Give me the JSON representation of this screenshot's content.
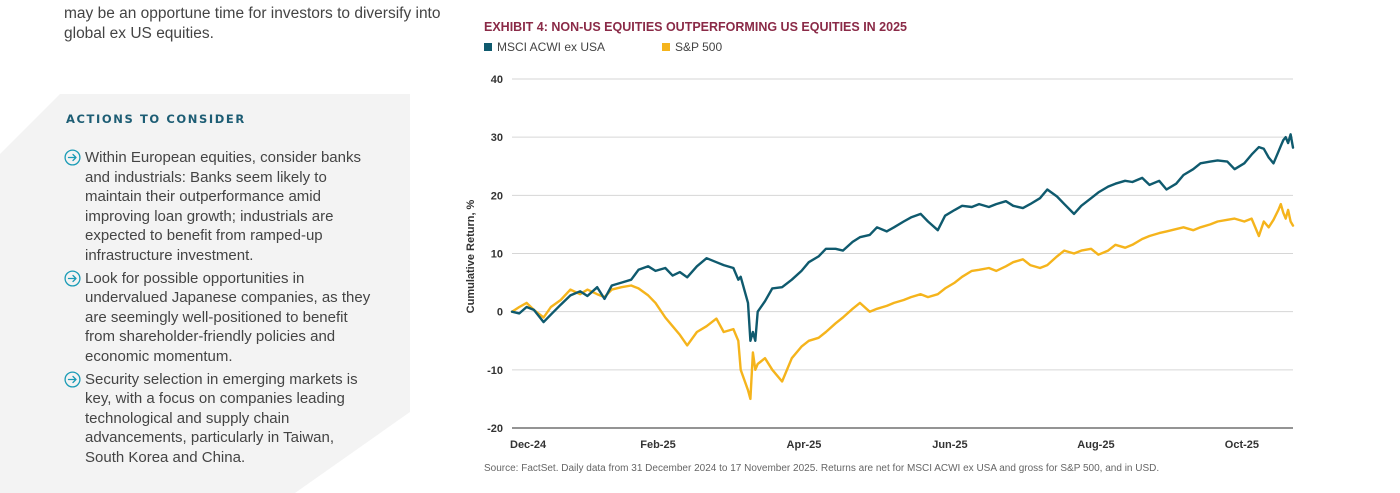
{
  "intro_text": "may be an opportune time for investors to diversify into global ex US equities.",
  "actions": {
    "heading": "ACTIONS TO CONSIDER",
    "items": [
      {
        "text": "Within European equities, consider banks and industrials: Banks seem likely to maintain their outperformance amid improving loan growth; industrials are expected to benefit from ramped-up infrastructure investment."
      },
      {
        "text": "Look for possible opportunities in undervalued Japanese companies, as they are seemingly well-positioned to benefit from shareholder-friendly policies and economic momentum."
      },
      {
        "text": "Security selection in emerging markets is key, with a focus on companies leading technological and supply chain advancements, particularly in Taiwan, South Korea and China."
      }
    ],
    "icon": "circle-arrow-right-icon"
  },
  "colors": {
    "msci": "#0f5a6e",
    "sp500": "#f5b41c",
    "title": "#8a2a47",
    "heading": "#1d5d74"
  },
  "chart_data": {
    "type": "line",
    "title": "EXHIBIT 4: NON-US EQUITIES OUTPERFORMING US EQUITIES IN 2025",
    "ylabel": "Cumulative Return, %",
    "xlabel": "",
    "ylim": [
      -20,
      40
    ],
    "yticks": [
      40,
      30,
      20,
      10,
      0,
      -10,
      -20
    ],
    "xticks": [
      {
        "label": "Dec-24",
        "date": "2024-12-31"
      },
      {
        "label": "Feb-25",
        "date": "2025-03-01"
      },
      {
        "label": "Apr-25",
        "date": "2025-04-30"
      },
      {
        "label": "Jun-25",
        "date": "2025-06-29"
      },
      {
        "label": "Aug-25",
        "date": "2025-08-28"
      },
      {
        "label": "Oct-25",
        "date": "2025-10-27"
      }
    ],
    "xrange": [
      "2024-12-31",
      "2025-11-17"
    ],
    "grid": true,
    "legend_position": "top-left",
    "series": [
      {
        "name": "MSCI ACWI ex USA",
        "color": "#0f5a6e",
        "points": [
          [
            "2024-12-31",
            0
          ],
          [
            "2025-01-03",
            -0.3
          ],
          [
            "2025-01-06",
            0.8
          ],
          [
            "2025-01-09",
            0.3
          ],
          [
            "2025-01-13",
            -1.8
          ],
          [
            "2025-01-16",
            -0.5
          ],
          [
            "2025-01-20",
            1.2
          ],
          [
            "2025-01-24",
            2.8
          ],
          [
            "2025-01-28",
            3.5
          ],
          [
            "2025-01-31",
            2.7
          ],
          [
            "2025-02-04",
            4.2
          ],
          [
            "2025-02-07",
            2.2
          ],
          [
            "2025-02-10",
            4.5
          ],
          [
            "2025-02-14",
            5.0
          ],
          [
            "2025-02-18",
            5.5
          ],
          [
            "2025-02-21",
            7.2
          ],
          [
            "2025-02-25",
            7.8
          ],
          [
            "2025-02-28",
            7.0
          ],
          [
            "2025-03-04",
            7.5
          ],
          [
            "2025-03-07",
            6.2
          ],
          [
            "2025-03-10",
            6.8
          ],
          [
            "2025-03-13",
            5.9
          ],
          [
            "2025-03-17",
            7.8
          ],
          [
            "2025-03-21",
            9.2
          ],
          [
            "2025-03-25",
            8.5
          ],
          [
            "2025-03-28",
            8.0
          ],
          [
            "2025-04-01",
            7.5
          ],
          [
            "2025-04-03",
            5.5
          ],
          [
            "2025-04-04",
            6.0
          ],
          [
            "2025-04-07",
            1.5
          ],
          [
            "2025-04-08",
            -5.0
          ],
          [
            "2025-04-09",
            -3.5
          ],
          [
            "2025-04-10",
            -5.0
          ],
          [
            "2025-04-11",
            0.0
          ],
          [
            "2025-04-14",
            1.8
          ],
          [
            "2025-04-17",
            4.0
          ],
          [
            "2025-04-21",
            4.2
          ],
          [
            "2025-04-25",
            5.5
          ],
          [
            "2025-04-29",
            7.0
          ],
          [
            "2025-05-02",
            8.5
          ],
          [
            "2025-05-06",
            9.5
          ],
          [
            "2025-05-09",
            10.8
          ],
          [
            "2025-05-13",
            10.8
          ],
          [
            "2025-05-16",
            10.5
          ],
          [
            "2025-05-20",
            12.0
          ],
          [
            "2025-05-23",
            12.8
          ],
          [
            "2025-05-27",
            13.2
          ],
          [
            "2025-05-30",
            14.5
          ],
          [
            "2025-06-03",
            13.8
          ],
          [
            "2025-06-06",
            14.5
          ],
          [
            "2025-06-10",
            15.5
          ],
          [
            "2025-06-13",
            16.2
          ],
          [
            "2025-06-17",
            16.8
          ],
          [
            "2025-06-20",
            15.5
          ],
          [
            "2025-06-24",
            14.0
          ],
          [
            "2025-06-27",
            16.5
          ],
          [
            "2025-07-01",
            17.5
          ],
          [
            "2025-07-04",
            18.2
          ],
          [
            "2025-07-08",
            18.0
          ],
          [
            "2025-07-11",
            18.5
          ],
          [
            "2025-07-15",
            18.0
          ],
          [
            "2025-07-18",
            18.5
          ],
          [
            "2025-07-22",
            19.0
          ],
          [
            "2025-07-25",
            18.2
          ],
          [
            "2025-07-29",
            17.8
          ],
          [
            "2025-08-01",
            18.5
          ],
          [
            "2025-08-05",
            19.5
          ],
          [
            "2025-08-08",
            21.0
          ],
          [
            "2025-08-12",
            19.8
          ],
          [
            "2025-08-15",
            18.5
          ],
          [
            "2025-08-19",
            16.8
          ],
          [
            "2025-08-22",
            18.2
          ],
          [
            "2025-08-26",
            19.5
          ],
          [
            "2025-08-29",
            20.5
          ],
          [
            "2025-09-02",
            21.5
          ],
          [
            "2025-09-05",
            22.0
          ],
          [
            "2025-09-09",
            22.5
          ],
          [
            "2025-09-12",
            22.3
          ],
          [
            "2025-09-16",
            23.0
          ],
          [
            "2025-09-19",
            21.8
          ],
          [
            "2025-09-23",
            22.5
          ],
          [
            "2025-09-26",
            21.0
          ],
          [
            "2025-09-30",
            22.0
          ],
          [
            "2025-10-03",
            23.5
          ],
          [
            "2025-10-07",
            24.5
          ],
          [
            "2025-10-10",
            25.5
          ],
          [
            "2025-10-14",
            25.8
          ],
          [
            "2025-10-17",
            26.0
          ],
          [
            "2025-10-21",
            25.8
          ],
          [
            "2025-10-24",
            24.5
          ],
          [
            "2025-10-28",
            25.5
          ],
          [
            "2025-10-31",
            27.0
          ],
          [
            "2025-11-03",
            28.3
          ],
          [
            "2025-11-05",
            28.0
          ],
          [
            "2025-11-07",
            26.5
          ],
          [
            "2025-11-09",
            25.5
          ],
          [
            "2025-11-11",
            27.5
          ],
          [
            "2025-11-12",
            28.5
          ],
          [
            "2025-11-13",
            29.5
          ],
          [
            "2025-11-14",
            30.0
          ],
          [
            "2025-11-15",
            29.0
          ],
          [
            "2025-11-16",
            30.5
          ],
          [
            "2025-11-17",
            28.2
          ]
        ]
      },
      {
        "name": "S&P 500",
        "color": "#f5b41c",
        "points": [
          [
            "2024-12-31",
            0
          ],
          [
            "2025-01-03",
            0.8
          ],
          [
            "2025-01-06",
            1.5
          ],
          [
            "2025-01-09",
            0.3
          ],
          [
            "2025-01-13",
            -1.0
          ],
          [
            "2025-01-16",
            0.8
          ],
          [
            "2025-01-20",
            2.0
          ],
          [
            "2025-01-24",
            3.8
          ],
          [
            "2025-01-28",
            3.0
          ],
          [
            "2025-01-31",
            3.8
          ],
          [
            "2025-02-04",
            3.0
          ],
          [
            "2025-02-07",
            2.5
          ],
          [
            "2025-02-10",
            3.8
          ],
          [
            "2025-02-14",
            4.2
          ],
          [
            "2025-02-18",
            4.5
          ],
          [
            "2025-02-21",
            4.0
          ],
          [
            "2025-02-25",
            2.8
          ],
          [
            "2025-02-28",
            1.5
          ],
          [
            "2025-03-04",
            -1.0
          ],
          [
            "2025-03-07",
            -2.5
          ],
          [
            "2025-03-10",
            -4.0
          ],
          [
            "2025-03-13",
            -5.8
          ],
          [
            "2025-03-17",
            -3.5
          ],
          [
            "2025-03-21",
            -2.5
          ],
          [
            "2025-03-25",
            -1.2
          ],
          [
            "2025-03-28",
            -3.5
          ],
          [
            "2025-04-01",
            -3.0
          ],
          [
            "2025-04-03",
            -5.0
          ],
          [
            "2025-04-04",
            -10.0
          ],
          [
            "2025-04-07",
            -13.5
          ],
          [
            "2025-04-08",
            -15.0
          ],
          [
            "2025-04-09",
            -7.0
          ],
          [
            "2025-04-10",
            -10.0
          ],
          [
            "2025-04-11",
            -9.0
          ],
          [
            "2025-04-14",
            -8.0
          ],
          [
            "2025-04-17",
            -10.0
          ],
          [
            "2025-04-21",
            -12.0
          ],
          [
            "2025-04-25",
            -8.0
          ],
          [
            "2025-04-29",
            -6.0
          ],
          [
            "2025-05-02",
            -5.0
          ],
          [
            "2025-05-06",
            -4.5
          ],
          [
            "2025-05-09",
            -3.5
          ],
          [
            "2025-05-13",
            -2.0
          ],
          [
            "2025-05-16",
            -1.0
          ],
          [
            "2025-05-20",
            0.5
          ],
          [
            "2025-05-23",
            1.5
          ],
          [
            "2025-05-27",
            0.0
          ],
          [
            "2025-05-30",
            0.5
          ],
          [
            "2025-06-03",
            1.0
          ],
          [
            "2025-06-06",
            1.5
          ],
          [
            "2025-06-10",
            2.0
          ],
          [
            "2025-06-13",
            2.5
          ],
          [
            "2025-06-17",
            3.0
          ],
          [
            "2025-06-20",
            2.5
          ],
          [
            "2025-06-24",
            3.0
          ],
          [
            "2025-06-27",
            4.0
          ],
          [
            "2025-07-01",
            5.0
          ],
          [
            "2025-07-04",
            6.0
          ],
          [
            "2025-07-08",
            7.0
          ],
          [
            "2025-07-11",
            7.2
          ],
          [
            "2025-07-15",
            7.5
          ],
          [
            "2025-07-18",
            7.0
          ],
          [
            "2025-07-22",
            7.8
          ],
          [
            "2025-07-25",
            8.5
          ],
          [
            "2025-07-29",
            9.0
          ],
          [
            "2025-08-01",
            8.0
          ],
          [
            "2025-08-05",
            7.5
          ],
          [
            "2025-08-08",
            8.0
          ],
          [
            "2025-08-12",
            9.5
          ],
          [
            "2025-08-15",
            10.5
          ],
          [
            "2025-08-19",
            10.0
          ],
          [
            "2025-08-22",
            10.5
          ],
          [
            "2025-08-26",
            10.8
          ],
          [
            "2025-08-29",
            9.8
          ],
          [
            "2025-09-02",
            10.5
          ],
          [
            "2025-09-05",
            11.5
          ],
          [
            "2025-09-09",
            11.0
          ],
          [
            "2025-09-12",
            11.5
          ],
          [
            "2025-09-16",
            12.5
          ],
          [
            "2025-09-19",
            13.0
          ],
          [
            "2025-09-23",
            13.5
          ],
          [
            "2025-09-26",
            13.8
          ],
          [
            "2025-09-30",
            14.2
          ],
          [
            "2025-10-03",
            14.5
          ],
          [
            "2025-10-07",
            14.0
          ],
          [
            "2025-10-10",
            14.5
          ],
          [
            "2025-10-14",
            15.0
          ],
          [
            "2025-10-17",
            15.5
          ],
          [
            "2025-10-21",
            15.8
          ],
          [
            "2025-10-24",
            16.0
          ],
          [
            "2025-10-28",
            15.5
          ],
          [
            "2025-10-31",
            16.0
          ],
          [
            "2025-11-03",
            13.0
          ],
          [
            "2025-11-05",
            15.5
          ],
          [
            "2025-11-07",
            14.5
          ],
          [
            "2025-11-09",
            15.8
          ],
          [
            "2025-11-11",
            17.5
          ],
          [
            "2025-11-12",
            18.5
          ],
          [
            "2025-11-13",
            17.0
          ],
          [
            "2025-11-14",
            16.0
          ],
          [
            "2025-11-15",
            17.5
          ],
          [
            "2025-11-16",
            15.5
          ],
          [
            "2025-11-17",
            14.8
          ]
        ]
      }
    ],
    "source": "Source: FactSet. Daily data from 31 December 2024 to 17 November 2025. Returns are net for MSCI ACWI ex USA and gross for S&P 500, and in USD."
  }
}
